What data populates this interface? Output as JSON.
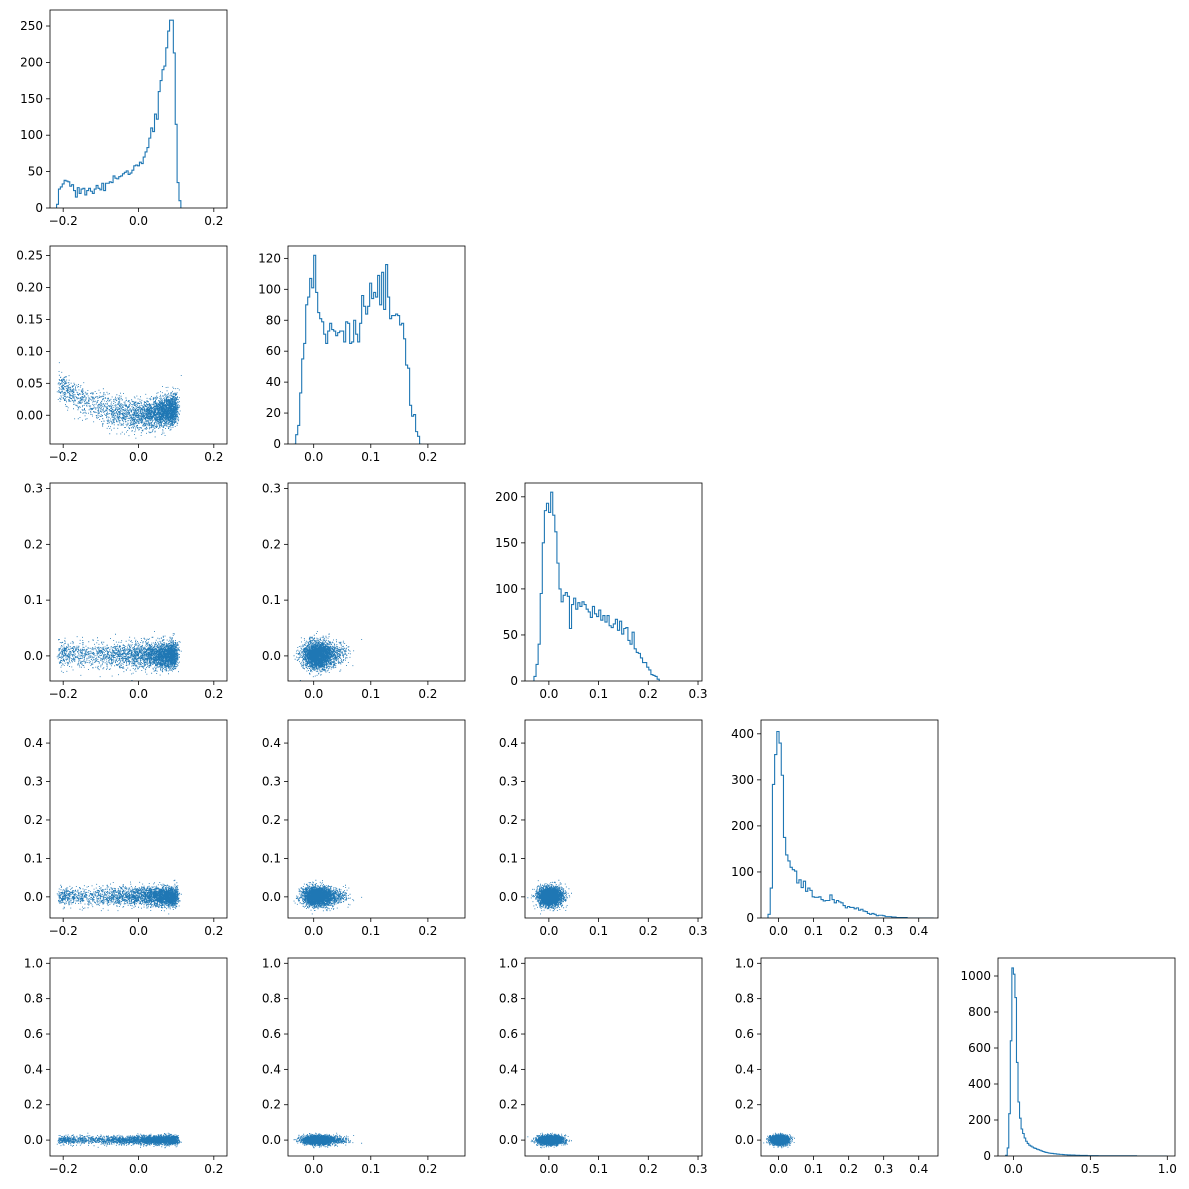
{
  "chart_data": {
    "type": "corner",
    "n_params": 5,
    "color": "#1f77b4",
    "background": "#ffffff",
    "grid": false,
    "marginal": "histogram (step)",
    "joint": "scatter",
    "params": [
      {
        "xlim": [
          -0.235,
          0.235
        ],
        "xticks": [
          -0.2,
          0.0,
          0.2
        ],
        "xtick_labels": [
          "−0.2",
          "0.0",
          "0.2"
        ],
        "hist_ylim": [
          0,
          272
        ],
        "hist_yticks": [
          0,
          50,
          100,
          150,
          200,
          250
        ],
        "hist_bins": {
          "start": -0.2175,
          "width": 0.005,
          "counts": [
            5,
            26,
            29,
            33,
            38,
            37,
            36,
            30,
            32,
            24,
            15,
            28,
            20,
            26,
            27,
            18,
            24,
            27,
            23,
            20,
            26,
            31,
            27,
            25,
            34,
            24,
            34,
            34,
            36,
            35,
            44,
            41,
            40,
            43,
            44,
            47,
            49,
            51,
            46,
            48,
            52,
            58,
            59,
            58,
            63,
            61,
            70,
            77,
            83,
            96,
            110,
            105,
            129,
            122,
            160,
            175,
            190,
            195,
            220,
            243,
            258,
            258,
            213,
            115,
            35,
            10
          ]
        }
      },
      {
        "xlim": [
          -0.045,
          0.265
        ],
        "xticks": [
          0.0,
          0.1,
          0.2
        ],
        "xtick_labels": [
          "0.0",
          "0.1",
          "0.2"
        ],
        "ylim": [
          -0.045,
          0.265
        ],
        "yticks": [
          0.0,
          0.05,
          0.1,
          0.15,
          0.2,
          0.25
        ],
        "ytick_labels": [
          "0.00",
          "0.05",
          "0.10",
          "0.15",
          "0.20",
          "0.25"
        ],
        "hist_ylim": [
          0,
          128
        ],
        "hist_yticks": [
          0,
          20,
          40,
          60,
          80,
          100,
          120
        ],
        "hist_bins": {
          "start": -0.035,
          "width": 0.0035,
          "counts": [
            0,
            6,
            12,
            33,
            55,
            65,
            90,
            95,
            107,
            101,
            122,
            98,
            85,
            81,
            79,
            71,
            65,
            73,
            78,
            74,
            73,
            70,
            72,
            73,
            73,
            66,
            79,
            78,
            65,
            66,
            80,
            71,
            66,
            78,
            96,
            89,
            84,
            89,
            104,
            94,
            98,
            95,
            109,
            90,
            111,
            87,
            116,
            95,
            81,
            83,
            83,
            84,
            83,
            77,
            78,
            68,
            51,
            49,
            25,
            18,
            19,
            8,
            5,
            0
          ]
        }
      },
      {
        "xlim": [
          -0.048,
          0.308
        ],
        "xticks": [
          0.0,
          0.1,
          0.2,
          0.3
        ],
        "xtick_labels": [
          "0.0",
          "0.1",
          "0.2",
          "0.3"
        ],
        "ylim": [
          -0.045,
          0.31
        ],
        "yticks": [
          0.0,
          0.1,
          0.2,
          0.3
        ],
        "ytick_labels": [
          "0.0",
          "0.1",
          "0.2",
          "0.3"
        ],
        "hist_ylim": [
          0,
          215
        ],
        "hist_yticks": [
          0,
          50,
          100,
          150,
          200
        ],
        "hist_bins": {
          "start": -0.03,
          "width": 0.0042,
          "counts": [
            5,
            18,
            40,
            95,
            150,
            185,
            193,
            183,
            205,
            180,
            162,
            128,
            100,
            86,
            93,
            96,
            92,
            57,
            83,
            90,
            78,
            85,
            81,
            86,
            83,
            78,
            75,
            69,
            81,
            73,
            70,
            77,
            66,
            71,
            64,
            71,
            60,
            58,
            62,
            67,
            55,
            65,
            51,
            57,
            58,
            44,
            40,
            53,
            35,
            31,
            30,
            25,
            20,
            20,
            15,
            12,
            7,
            6,
            5,
            2
          ]
        }
      },
      {
        "xlim": [
          -0.05,
          0.455
        ],
        "xticks": [
          0.0,
          0.1,
          0.2,
          0.3,
          0.4
        ],
        "xtick_labels": [
          "0.0",
          "0.1",
          "0.2",
          "0.3",
          "0.4"
        ],
        "ylim": [
          -0.055,
          0.46
        ],
        "yticks": [
          0.0,
          0.1,
          0.2,
          0.3,
          0.4
        ],
        "ytick_labels": [
          "0.0",
          "0.1",
          "0.2",
          "0.3",
          "0.4"
        ],
        "hist_ylim": [
          0,
          430
        ],
        "hist_yticks": [
          0,
          100,
          200,
          300,
          400
        ],
        "hist_bins": {
          "start": -0.03,
          "width": 0.0063,
          "counts": [
            8,
            65,
            290,
            355,
            405,
            380,
            310,
            175,
            137,
            124,
            110,
            105,
            102,
            76,
            83,
            66,
            80,
            58,
            65,
            60,
            46,
            45,
            45,
            46,
            40,
            37,
            38,
            38,
            50,
            40,
            33,
            38,
            35,
            33,
            27,
            22,
            25,
            23,
            23,
            20,
            22,
            17,
            19,
            15,
            14,
            10,
            8,
            10,
            8,
            5,
            6,
            6,
            5,
            3,
            3,
            3,
            2,
            2,
            1,
            1,
            1,
            1,
            1,
            0,
            0,
            0,
            0,
            0,
            0,
            0,
            0,
            0,
            0,
            0,
            0
          ]
        }
      },
      {
        "xlim": [
          -0.1,
          1.05
        ],
        "xticks": [
          0.0,
          0.5,
          1.0
        ],
        "xtick_labels": [
          "0.0",
          "0.5",
          "1.0"
        ],
        "ylim": [
          -0.09,
          1.03
        ],
        "yticks": [
          0.0,
          0.2,
          0.4,
          0.6,
          0.8,
          1.0
        ],
        "ytick_labels": [
          "0.0",
          "0.2",
          "0.4",
          "0.6",
          "0.8",
          "1.0"
        ],
        "hist_ylim": [
          0,
          1100
        ],
        "hist_yticks": [
          0,
          200,
          400,
          600,
          800,
          1000
        ],
        "hist_bins": {
          "start": -0.05,
          "width": 0.01,
          "counts": [
            4,
            45,
            235,
            640,
            1045,
            1010,
            880,
            520,
            300,
            210,
            150,
            125,
            100,
            82,
            70,
            60,
            55,
            50,
            45,
            42,
            38,
            35,
            32,
            28,
            25,
            22,
            20,
            18,
            16,
            15,
            14,
            13,
            12,
            11,
            10,
            9,
            9,
            8,
            7,
            7,
            6,
            6,
            5,
            5,
            5,
            4,
            4,
            4,
            3,
            3,
            3,
            3,
            3,
            2,
            2,
            2,
            2,
            2,
            2,
            2,
            1,
            1,
            1,
            1,
            1,
            1,
            1,
            1,
            1,
            1,
            1,
            1,
            1,
            1,
            1,
            1,
            1,
            1,
            1,
            1,
            1,
            1,
            1,
            1,
            1,
            0,
            0,
            0,
            0,
            0,
            0,
            0,
            0,
            0,
            0,
            0,
            0,
            0,
            0,
            0,
            0,
            0,
            0,
            0,
            0
          ]
        }
      }
    ],
    "scatter_points_per_panel": 3500,
    "row_one_left_ylim": [
      -0.045,
      0.265
    ]
  }
}
